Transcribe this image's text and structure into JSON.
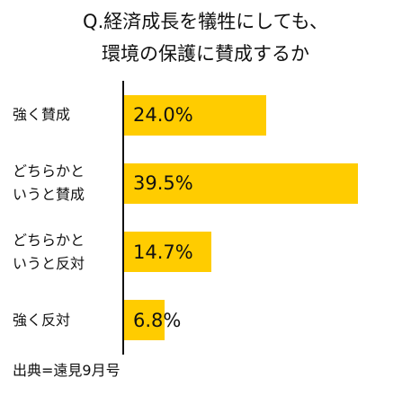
{
  "chart_data": {
    "type": "bar",
    "orientation": "horizontal",
    "title_lines": [
      "Q.経済成長を犠牲にしても、",
      "環境の保護に賛成するか"
    ],
    "categories": [
      [
        "強く賛成"
      ],
      [
        "どちらかと",
        "いうと賛成"
      ],
      [
        "どちらかと",
        "いうと反対"
      ],
      [
        "強く反対"
      ]
    ],
    "values": [
      24.0,
      39.5,
      14.7,
      6.8
    ],
    "value_labels": [
      "24.0%",
      "39.5%",
      "14.7%",
      "6.8%"
    ],
    "unit": "%",
    "xlim": [
      0,
      47
    ],
    "grid": false,
    "bar_color": "#ffcc00",
    "axis_color": "#111111"
  },
  "source": "出典=遠見9月号"
}
